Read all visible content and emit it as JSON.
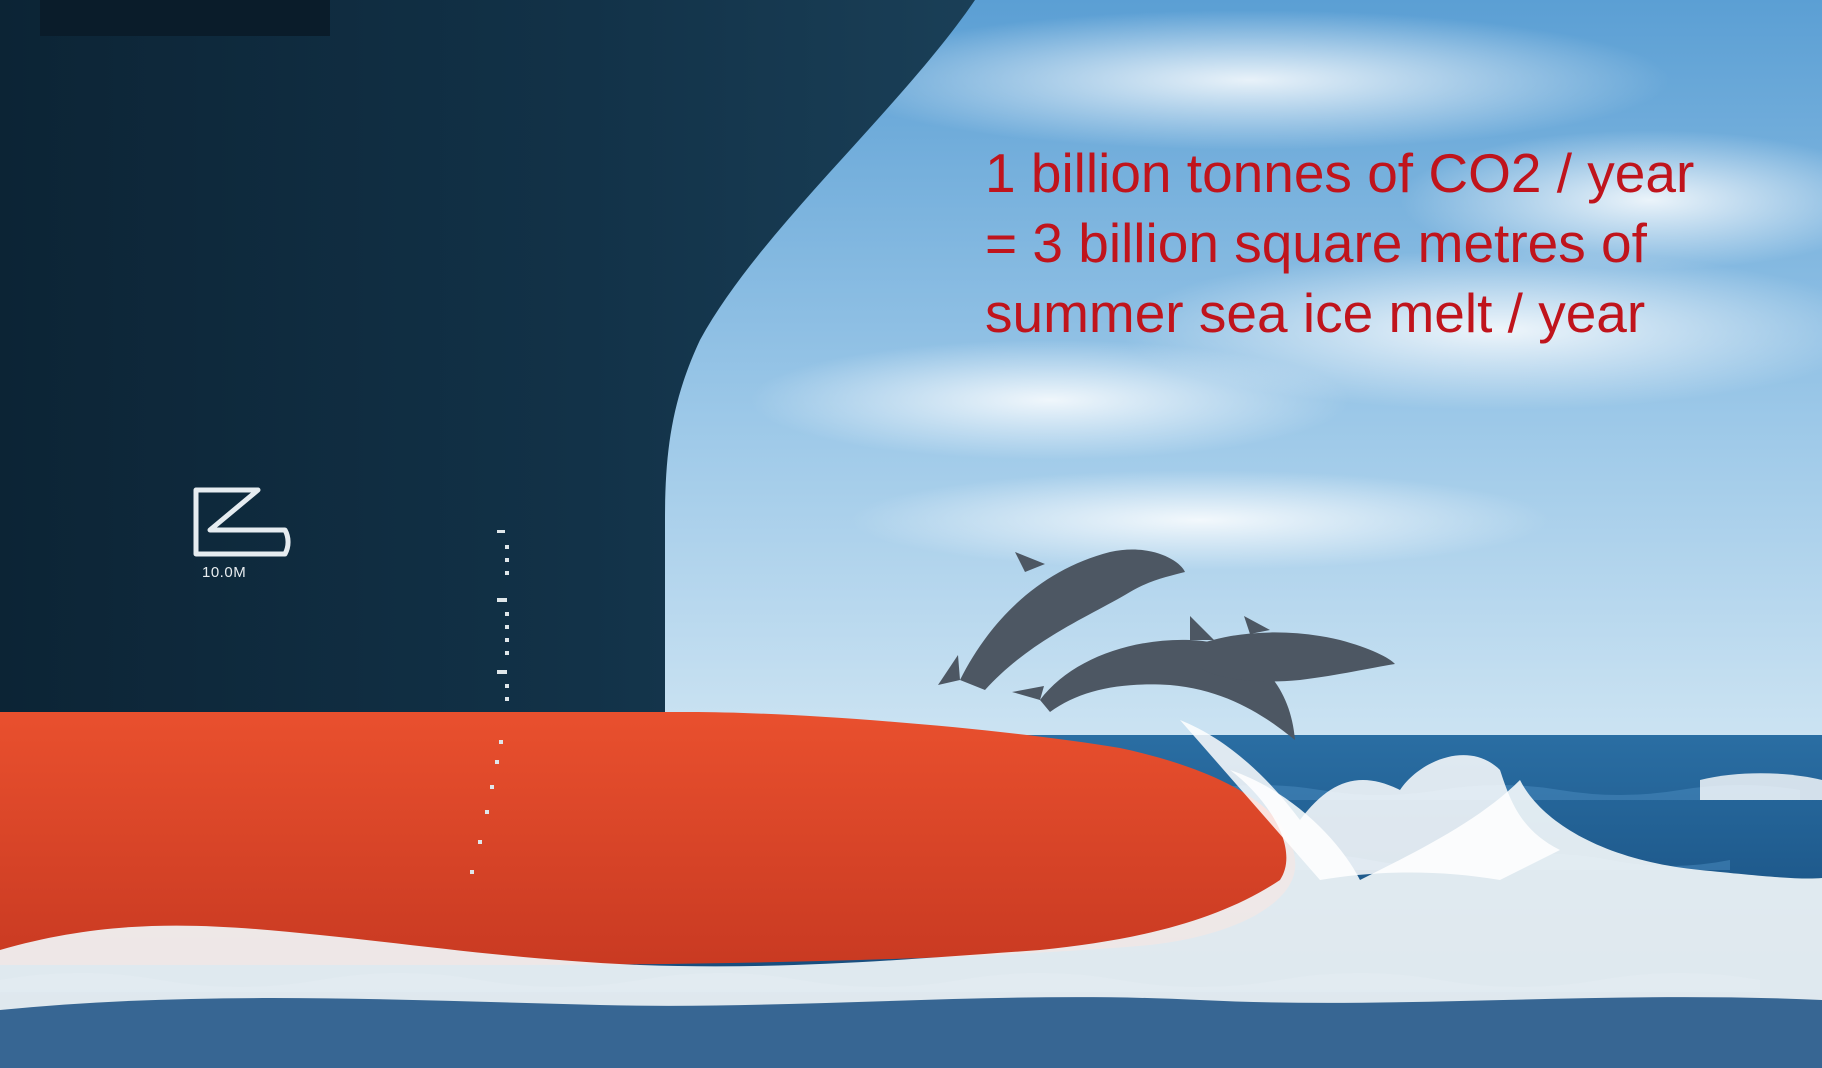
{
  "caption": {
    "line1": "1 billion tonnes of CO2 / year",
    "line2": "= 3 billion square metres of",
    "line3": "summer sea ice melt / year",
    "color": "#c0141c"
  },
  "ship": {
    "draft_mark_label": "10.0M",
    "hull_color": "#0f2a3d",
    "bottom_color": "#e2482a"
  },
  "colors": {
    "sky_top": "#5fa3d6",
    "sky_bottom": "#cfe4f2",
    "sea": "#1d5f93",
    "foam": "#f4f8fb",
    "dolphin": "#4c5560"
  }
}
